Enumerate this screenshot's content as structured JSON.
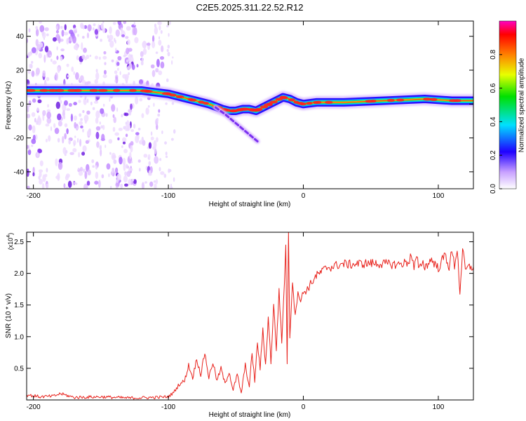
{
  "title": "C2E5.2025.311.22.52.R12",
  "colors": {
    "axis": "#000000",
    "snr_line": "#e8211b",
    "spectrogram_background": "#ffffff",
    "scatter_haze": "#b070ff"
  },
  "chart_data": [
    {
      "type": "heatmap",
      "title": "C2E5.2025.311.22.52.R12",
      "xlabel": "Height of straight line (km)",
      "ylabel": "Frequency (Hz)",
      "xlim": [
        -205,
        126
      ],
      "ylim": [
        -50,
        49
      ],
      "x_ticks": [
        -200,
        -100,
        0,
        100
      ],
      "x_tick_labels": [
        "-200",
        "-100",
        "0",
        "100"
      ],
      "y_ticks": [
        -40,
        -20,
        0,
        20,
        40
      ],
      "y_tick_labels": [
        "-40",
        "-20",
        "0",
        "20",
        "40"
      ],
      "colorbar": {
        "label": "Normalized spectral amplitude",
        "range": [
          0,
          1
        ],
        "ticks": [
          0,
          0.2,
          0.4,
          0.6,
          0.8
        ],
        "tick_labels": [
          "0.0",
          "0.2",
          "0.4",
          "0.6",
          "0.8"
        ]
      },
      "ridge": {
        "description": "Main Doppler frequency trace (Hz vs height km)",
        "x": [
          -205,
          -190,
          -175,
          -160,
          -140,
          -120,
          -110,
          -100,
          -90,
          -80,
          -70,
          -60,
          -55,
          -50,
          -45,
          -40,
          -35,
          -30,
          -25,
          -20,
          -15,
          -10,
          -5,
          0,
          10,
          30,
          60,
          90,
          110,
          126
        ],
        "y": [
          8,
          8,
          8,
          8,
          8,
          8,
          7,
          6,
          4,
          2,
          0,
          -3,
          -4,
          -4,
          -3,
          -3,
          -4,
          -2,
          0,
          2,
          4,
          3,
          1,
          0,
          1,
          1,
          2,
          3,
          2,
          2
        ]
      },
      "secondary_branch": {
        "description": "Weaker descending branch",
        "x": [
          -65,
          -58,
          -52,
          -46,
          -40,
          -34
        ],
        "y": [
          -2,
          -6,
          -10,
          -14,
          -18,
          -22
        ]
      },
      "scatter_columns": {
        "description": "Vertical bands of scattered low-amplitude energy",
        "x": [
          -202,
          -192,
          -180,
          -170,
          -162,
          -150,
          -140,
          -130,
          -123,
          -110
        ]
      }
    },
    {
      "type": "line",
      "xlabel": "Height of straight line (km)",
      "ylabel": "SNR (10 * v/v)",
      "scale_label": "(x10",
      "scale_exponent": "4",
      "scale_suffix": ")",
      "xlim": [
        -205,
        126
      ],
      "ylim": [
        0,
        2.65
      ],
      "x_ticks": [
        -200,
        -100,
        0,
        100
      ],
      "x_tick_labels": [
        "-200",
        "-100",
        "0",
        "100"
      ],
      "y_ticks": [
        0.5,
        1.0,
        1.5,
        2.0,
        2.5
      ],
      "y_tick_labels": [
        "0.5",
        "1.0",
        "1.5",
        "2.0",
        "2.5"
      ],
      "series": [
        {
          "name": "SNR",
          "x": [
            -205,
            -195,
            -185,
            -180,
            -170,
            -150,
            -130,
            -110,
            -100,
            -96,
            -92,
            -88,
            -85,
            -82,
            -79,
            -76,
            -73,
            -70,
            -67,
            -64,
            -61,
            -58,
            -55,
            -52,
            -49,
            -46,
            -43,
            -40,
            -38,
            -36,
            -34,
            -32,
            -30,
            -28,
            -26,
            -24,
            -22,
            -20,
            -18,
            -16,
            -14,
            -13,
            -12,
            -11,
            -10,
            -8,
            -6,
            -4,
            -2,
            0,
            3,
            6,
            9,
            12,
            15,
            18,
            21,
            25,
            30,
            35,
            40,
            50,
            60,
            70,
            78,
            80,
            82,
            84,
            86,
            88,
            90,
            95,
            100,
            105,
            108,
            110,
            112,
            114,
            116,
            118,
            120,
            123,
            126
          ],
          "y": [
            0.08,
            0.05,
            0.06,
            0.1,
            0.04,
            0.05,
            0.03,
            0.04,
            0.05,
            0.12,
            0.25,
            0.3,
            0.55,
            0.35,
            0.65,
            0.4,
            0.75,
            0.35,
            0.6,
            0.3,
            0.5,
            0.25,
            0.45,
            0.15,
            0.4,
            0.1,
            0.55,
            0.2,
            0.75,
            0.3,
            0.9,
            0.5,
            1.1,
            0.55,
            1.3,
            0.6,
            1.5,
            0.8,
            1.75,
            0.9,
            1.9,
            2.4,
            0.6,
            2.65,
            1.0,
            1.9,
            1.3,
            1.75,
            1.55,
            1.7,
            1.75,
            1.85,
            1.95,
            2.0,
            2.05,
            2.1,
            2.1,
            2.13,
            2.15,
            2.14,
            2.15,
            2.16,
            2.15,
            2.14,
            2.18,
            2.3,
            2.08,
            2.25,
            2.05,
            2.2,
            2.1,
            2.22,
            2.08,
            2.3,
            2.1,
            2.35,
            2.12,
            2.4,
            1.7,
            2.38,
            2.05,
            2.1,
            2.1
          ]
        }
      ]
    }
  ]
}
